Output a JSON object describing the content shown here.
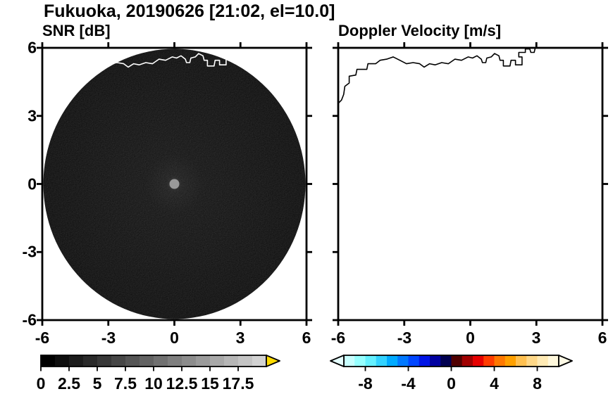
{
  "title": "Fukuoka, 20190626 [21:02, el=10.0]",
  "panels": {
    "snr": {
      "subtitle": "SNR [dB]",
      "x_tick_labels": [
        "-6",
        "-3",
        "0",
        "3",
        "6"
      ],
      "y_tick_labels": [
        "6",
        "3",
        "0",
        "-3",
        "-6"
      ]
    },
    "velocity": {
      "subtitle": "Doppler Velocity [m/s]",
      "x_tick_labels": [
        "-6",
        "-3",
        "0",
        "3",
        "6"
      ]
    }
  },
  "colorbars": {
    "snr": {
      "tick_labels": [
        "0",
        "2.5",
        "5",
        "7.5",
        "10",
        "12.5",
        "15",
        "17.5"
      ],
      "range": [
        0,
        20
      ],
      "segment_colors": [
        "#000000",
        "#0e0e0e",
        "#1c1c1c",
        "#2a2a2a",
        "#383838",
        "#464646",
        "#545454",
        "#626262",
        "#707070",
        "#7e7e7e",
        "#8c8c8c",
        "#9a9a9a",
        "#a8a8a8",
        "#b6b6b6",
        "#c4c4c4",
        "#d2d2d2"
      ],
      "over_arrow_color": "#ffdc00"
    },
    "velocity": {
      "tick_labels": [
        "-8",
        "-4",
        "0",
        "4",
        "8"
      ],
      "range": [
        -10,
        10
      ],
      "segment_colors": [
        "#c8ffff",
        "#96ffff",
        "#64f0ff",
        "#32d2ff",
        "#00aaff",
        "#0078ff",
        "#0046ff",
        "#0014e6",
        "#0000a0",
        "#000050",
        "#500000",
        "#a00000",
        "#e60000",
        "#ff3c00",
        "#ff7800",
        "#ffa000",
        "#ffc050",
        "#ffd888",
        "#ffeab4",
        "#fff8dc"
      ],
      "under_arrow_color": "#e6ffff",
      "over_arrow_color": "#fffbe6"
    }
  },
  "chart_data": [
    {
      "type": "heatmap",
      "title": "SNR [dB]",
      "suptitle": "Fukuoka, 20190626 [21:02, el=10.0]",
      "xlim": [
        -6,
        6
      ],
      "ylim": [
        -6,
        6
      ],
      "x_ticks": [
        -6,
        -3,
        0,
        3,
        6
      ],
      "y_ticks": [
        6,
        3,
        0,
        -3,
        -6
      ],
      "colorbar": {
        "units": "dB",
        "range": [
          0,
          20
        ],
        "label_values": [
          0,
          2.5,
          5,
          7.5,
          10,
          12.5,
          15,
          17.5
        ],
        "style": "grayscale black to light gray, yellow over-range arrow at right end"
      },
      "content": "Circular radar PPI scan disk of radius 6 centered at (0,0); nearly uniform very low SNR (~0-2 dB, black) with faint speckle noise, a small gray higher-SNR spot at the exact center, and a white coastline overlay crossing the top of the disk"
    },
    {
      "type": "heatmap",
      "title": "Doppler Velocity [m/s]",
      "suptitle": "Fukuoka, 20190626 [21:02, el=10.0]",
      "xlim": [
        -6,
        6
      ],
      "ylim": [
        -6,
        6
      ],
      "x_ticks": [
        -6,
        -3,
        0,
        3,
        6
      ],
      "y_ticks": [
        6,
        3,
        0,
        -3,
        -6
      ],
      "colorbar": {
        "units": "m/s",
        "range": [
          -10,
          10
        ],
        "label_values": [
          -8,
          -4,
          0,
          4,
          8
        ],
        "style": "cyan to blue to dark navy (negative), dark red to red to orange to pale yellow (positive), pale triangular arrows on both ends"
      },
      "content": "Blank panel (no Doppler velocity echoes plotted); black coastline drawn across the upper part of the map area"
    }
  ]
}
